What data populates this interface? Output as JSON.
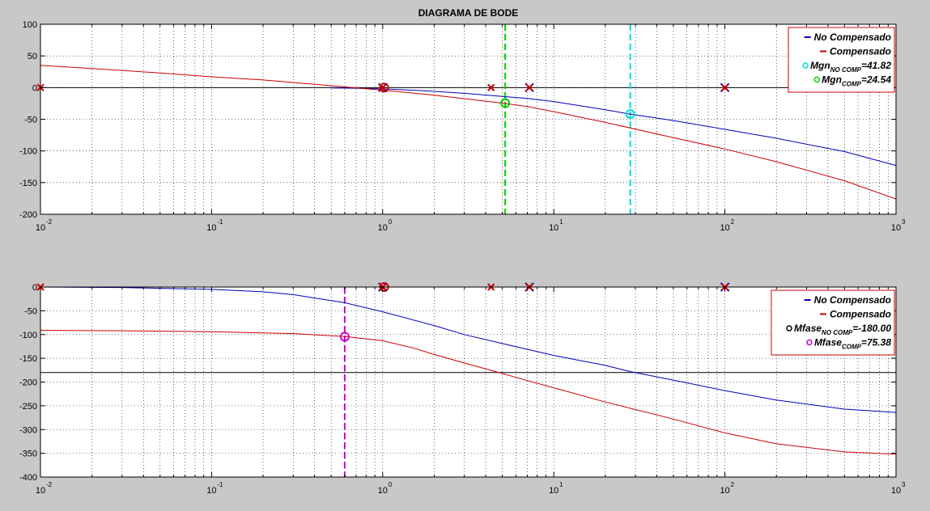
{
  "chart_data": [
    {
      "type": "line",
      "title": "DIAGRAMA DE BODE",
      "xscale": "log",
      "xlim": [
        0.01,
        1000
      ],
      "ylim": [
        -200,
        100
      ],
      "xticks": [
        0.01,
        0.1,
        1,
        10,
        100,
        1000
      ],
      "yticks": [
        100,
        50,
        0,
        -50,
        -100,
        -150,
        -200
      ],
      "grid": true,
      "legend_placement": "top-right",
      "series": [
        {
          "name": "No Compensado",
          "color": "#0000bb",
          "x": [
            0.5,
            0.7,
            1,
            1.5,
            2,
            3,
            5,
            7,
            10,
            20,
            28,
            50,
            100,
            200,
            500,
            1000
          ],
          "y": [
            -0.5,
            -1,
            -2,
            -4,
            -6,
            -9,
            -14,
            -17,
            -22,
            -35,
            -41.8,
            -52,
            -66,
            -80,
            -101,
            -123
          ]
        },
        {
          "name": "Compensado",
          "color": "#cc0000",
          "x": [
            0.01,
            0.02,
            0.05,
            0.1,
            0.2,
            0.5,
            1,
            2,
            5,
            7,
            10,
            20,
            50,
            100,
            200,
            500,
            1000
          ],
          "y": [
            35,
            30,
            23,
            17,
            12,
            3,
            -4,
            -12,
            -24.5,
            -30,
            -38,
            -55,
            -79,
            -97,
            -117,
            -147,
            -176
          ]
        }
      ],
      "reference_lines": [
        {
          "axis": "y",
          "value": 0,
          "color": "#000000"
        },
        {
          "axis": "x",
          "value": 5.2,
          "color": "#00cc00",
          "style": "dashed"
        },
        {
          "axis": "x",
          "value": 28,
          "color": "#00dddd",
          "style": "dashed"
        }
      ],
      "markers": [
        {
          "x": 5.2,
          "y": -24.54,
          "shape": "o",
          "color": "#00cc00",
          "legend": "Mgn",
          "sub": "COMP",
          "value": "=24.54"
        },
        {
          "x": 28,
          "y": -41.82,
          "shape": "o",
          "color": "#00dddd",
          "legend": "Mgn",
          "sub": "NO COMP",
          "value": "=41.82"
        },
        {
          "x": 1.02,
          "y": 0,
          "shape": "o",
          "color": "#cc0000"
        },
        {
          "x": 1,
          "y": 0,
          "shape": "x",
          "color": "#0000bb"
        },
        {
          "x": 7.2,
          "y": 0,
          "shape": "x",
          "color": "#0000bb"
        },
        {
          "x": 100,
          "y": 0,
          "shape": "x",
          "color": "#0000bb"
        },
        {
          "x": 0.01,
          "y": 0,
          "shape": "x",
          "color": "#cc0000"
        },
        {
          "x": 1,
          "y": 0,
          "shape": "x",
          "color": "#cc0000"
        },
        {
          "x": 4.3,
          "y": 0,
          "shape": "x",
          "color": "#cc0000"
        },
        {
          "x": 7.2,
          "y": 0,
          "shape": "x",
          "color": "#cc0000"
        },
        {
          "x": 100,
          "y": 0,
          "shape": "x",
          "color": "#cc0000"
        }
      ],
      "legend": [
        {
          "label": "No Compensado",
          "type": "line",
          "color": "#0000bb"
        },
        {
          "label": "Compensado",
          "type": "line",
          "color": "#cc0000"
        },
        {
          "label": "Mgn",
          "sub": "NO COMP",
          "value": "=41.82",
          "type": "circle",
          "color": "#00dddd"
        },
        {
          "label": "Mgn",
          "sub": "COMP",
          "value": "=24.54",
          "type": "circle",
          "color": "#00cc00"
        }
      ]
    },
    {
      "type": "line",
      "title": "",
      "xscale": "log",
      "xlim": [
        0.01,
        1000
      ],
      "ylim": [
        -400,
        0
      ],
      "xticks": [
        0.01,
        0.1,
        1,
        10,
        100,
        1000
      ],
      "yticks": [
        0,
        -50,
        -100,
        -150,
        -200,
        -250,
        -300,
        -350,
        -400
      ],
      "grid": true,
      "legend_placement": "top-right",
      "series": [
        {
          "name": "No Compensado",
          "color": "#0000bb",
          "x": [
            0.01,
            0.03,
            0.1,
            0.2,
            0.3,
            0.6,
            1,
            2,
            3,
            5,
            7,
            10,
            20,
            28,
            50,
            100,
            200,
            500,
            1000
          ],
          "y": [
            0,
            -1,
            -5,
            -10,
            -16,
            -33,
            -52,
            -81,
            -100,
            -119,
            -131,
            -144,
            -165,
            -178,
            -196,
            -218,
            -238,
            -257,
            -264
          ]
        },
        {
          "name": "Compensado",
          "color": "#cc0000",
          "x": [
            0.01,
            0.03,
            0.1,
            0.3,
            0.6,
            1,
            1.5,
            2,
            3,
            5,
            7,
            10,
            20,
            50,
            100,
            200,
            500,
            1000
          ],
          "y": [
            -91,
            -92,
            -94,
            -98,
            -104,
            -113,
            -128,
            -142,
            -160,
            -182,
            -197,
            -212,
            -242,
            -278,
            -307,
            -330,
            -347,
            -352
          ]
        }
      ],
      "reference_lines": [
        {
          "axis": "y",
          "value": -180,
          "color": "#000000"
        },
        {
          "axis": "x",
          "value": 0.6,
          "color": "#cc00cc",
          "style": "dashed"
        }
      ],
      "markers": [
        {
          "x": 0.6,
          "y": -104.62,
          "shape": "o",
          "color": "#cc00cc",
          "legend": "Mfase",
          "sub": "COMP",
          "value": "=75.38"
        },
        {
          "x": 1.02,
          "y": 0,
          "shape": "o",
          "color": "#cc0000"
        },
        {
          "x": 1,
          "y": 0,
          "shape": "x",
          "color": "#0000bb"
        },
        {
          "x": 7.2,
          "y": 0,
          "shape": "x",
          "color": "#0000bb"
        },
        {
          "x": 100,
          "y": 0,
          "shape": "x",
          "color": "#0000bb"
        },
        {
          "x": 0.01,
          "y": 0,
          "shape": "x",
          "color": "#cc0000"
        },
        {
          "x": 1,
          "y": 0,
          "shape": "x",
          "color": "#cc0000"
        },
        {
          "x": 4.3,
          "y": 0,
          "shape": "x",
          "color": "#cc0000"
        },
        {
          "x": 7.2,
          "y": 0,
          "shape": "x",
          "color": "#cc0000"
        },
        {
          "x": 100,
          "y": 0,
          "shape": "x",
          "color": "#cc0000"
        }
      ],
      "legend": [
        {
          "label": "No Compensado",
          "type": "line",
          "color": "#0000bb"
        },
        {
          "label": "Compensado",
          "type": "line",
          "color": "#cc0000"
        },
        {
          "label": "Mfase",
          "sub": "NO COMP",
          "value": "=-180.00",
          "type": "circle",
          "color": "#000000"
        },
        {
          "label": "Mfase",
          "sub": "COMP",
          "value": "=75.38",
          "type": "circle",
          "color": "#cc00cc"
        }
      ]
    }
  ]
}
